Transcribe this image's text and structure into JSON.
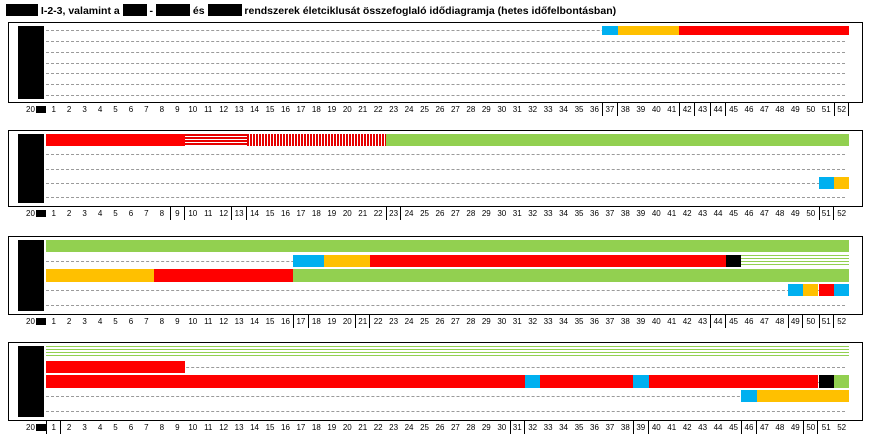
{
  "title": {
    "text": "I-2-3, valamint a",
    "dash": "-",
    "and": "és",
    "tail": "rendszerek életciklusát összefoglaló idődiagramja (hetes időfelbontásban)"
  },
  "colors": {
    "red": "#ff0000",
    "yellow": "#ffc000",
    "blue": "#00b0f0",
    "green": "#92d050",
    "black": "#000000"
  },
  "year_prefix": "20",
  "chart_data": [
    {
      "type": "timeline",
      "weeks": [
        1,
        2,
        3,
        4,
        5,
        6,
        7,
        8,
        9,
        10,
        11,
        12,
        13,
        14,
        15,
        16,
        17,
        18,
        19,
        20,
        21,
        22,
        23,
        24,
        25,
        26,
        27,
        28,
        29,
        30,
        31,
        32,
        33,
        34,
        35,
        36,
        37,
        38,
        39,
        40,
        41,
        42,
        43,
        44,
        45,
        46,
        47,
        48,
        49,
        50,
        51,
        52
      ],
      "boxed_weeks": [
        37,
        42,
        44,
        52
      ],
      "rows": 7,
      "bars": [
        {
          "row": 0,
          "start": 37,
          "end": 37,
          "color": "blue"
        },
        {
          "row": 0,
          "start": 38,
          "end": 41,
          "color": "yellow"
        },
        {
          "row": 0,
          "start": 42,
          "end": 52,
          "color": "red"
        }
      ]
    },
    {
      "type": "timeline",
      "weeks": [
        1,
        2,
        3,
        4,
        5,
        6,
        7,
        8,
        9,
        10,
        11,
        12,
        13,
        14,
        15,
        16,
        17,
        18,
        19,
        20,
        21,
        22,
        23,
        24,
        25,
        26,
        27,
        28,
        29,
        30,
        31,
        32,
        33,
        34,
        35,
        36,
        37,
        38,
        39,
        40,
        41,
        42,
        43,
        44,
        45,
        46,
        47,
        48,
        49,
        50,
        51,
        52
      ],
      "boxed_weeks": [
        9,
        13,
        23,
        51
      ],
      "rows": 5,
      "bars": [
        {
          "row": 0,
          "start": 1,
          "end": 9,
          "color": "red"
        },
        {
          "row": 0,
          "start": 10,
          "end": 13,
          "color": "red",
          "pattern": "hatch-h"
        },
        {
          "row": 0,
          "start": 14,
          "end": 22,
          "color": "red",
          "pattern": "hatch-v"
        },
        {
          "row": 0,
          "start": 23,
          "end": 52,
          "color": "green"
        },
        {
          "row": 3,
          "start": 51,
          "end": 51,
          "color": "blue"
        },
        {
          "row": 3,
          "start": 52,
          "end": 52,
          "color": "yellow"
        }
      ]
    },
    {
      "type": "timeline",
      "weeks": [
        1,
        2,
        3,
        4,
        5,
        6,
        7,
        8,
        9,
        10,
        11,
        12,
        13,
        14,
        15,
        16,
        17,
        18,
        19,
        20,
        21,
        22,
        23,
        24,
        25,
        26,
        27,
        28,
        29,
        30,
        31,
        32,
        33,
        34,
        35,
        36,
        37,
        38,
        39,
        40,
        41,
        42,
        43,
        44,
        45,
        46,
        47,
        48,
        49,
        50,
        51,
        52
      ],
      "boxed_weeks": [
        17,
        21,
        44,
        49,
        51
      ],
      "rows": 5,
      "bars": [
        {
          "row": 0,
          "start": 1,
          "end": 52,
          "color": "green"
        },
        {
          "row": 1,
          "start": 17,
          "end": 18,
          "color": "blue"
        },
        {
          "row": 1,
          "start": 19,
          "end": 21,
          "color": "yellow"
        },
        {
          "row": 1,
          "start": 22,
          "end": 44,
          "color": "red"
        },
        {
          "row": 1,
          "start": 45,
          "end": 45,
          "color": "black"
        },
        {
          "row": 1,
          "start": 46,
          "end": 52,
          "color": "green",
          "pattern": "lines"
        },
        {
          "row": 2,
          "start": 1,
          "end": 7,
          "color": "yellow"
        },
        {
          "row": 2,
          "start": 8,
          "end": 16,
          "color": "red"
        },
        {
          "row": 2,
          "start": 17,
          "end": 52,
          "color": "green"
        },
        {
          "row": 3,
          "start": 49,
          "end": 49,
          "color": "blue"
        },
        {
          "row": 3,
          "start": 50,
          "end": 50,
          "color": "yellow"
        },
        {
          "row": 3,
          "start": 51,
          "end": 51,
          "color": "red"
        },
        {
          "row": 3,
          "start": 52,
          "end": 52,
          "color": "blue"
        }
      ]
    },
    {
      "type": "timeline",
      "weeks": [
        1,
        2,
        3,
        4,
        5,
        6,
        7,
        8,
        9,
        10,
        11,
        12,
        13,
        14,
        15,
        16,
        17,
        18,
        19,
        20,
        21,
        22,
        23,
        24,
        25,
        26,
        27,
        28,
        29,
        30,
        31,
        32,
        33,
        34,
        35,
        36,
        37,
        38,
        39,
        40,
        41,
        42,
        43,
        44,
        45,
        46,
        47,
        48,
        49,
        50,
        51,
        52
      ],
      "boxed_weeks": [
        1,
        31,
        39,
        46,
        50
      ],
      "rows": 5,
      "bars": [
        {
          "row": 0,
          "start": 1,
          "end": 52,
          "color": "green",
          "pattern": "lines"
        },
        {
          "row": 1,
          "start": 1,
          "end": 9,
          "color": "red"
        },
        {
          "row": 2,
          "start": 1,
          "end": 31,
          "color": "red"
        },
        {
          "row": 2,
          "start": 32,
          "end": 32,
          "color": "blue"
        },
        {
          "row": 2,
          "start": 33,
          "end": 38,
          "color": "red"
        },
        {
          "row": 2,
          "start": 39,
          "end": 39,
          "color": "blue"
        },
        {
          "row": 2,
          "start": 40,
          "end": 50,
          "color": "red"
        },
        {
          "row": 2,
          "start": 51,
          "end": 51,
          "color": "black"
        },
        {
          "row": 2,
          "start": 52,
          "end": 52,
          "color": "green"
        },
        {
          "row": 3,
          "start": 46,
          "end": 46,
          "color": "blue"
        },
        {
          "row": 3,
          "start": 47,
          "end": 52,
          "color": "yellow"
        }
      ]
    }
  ]
}
